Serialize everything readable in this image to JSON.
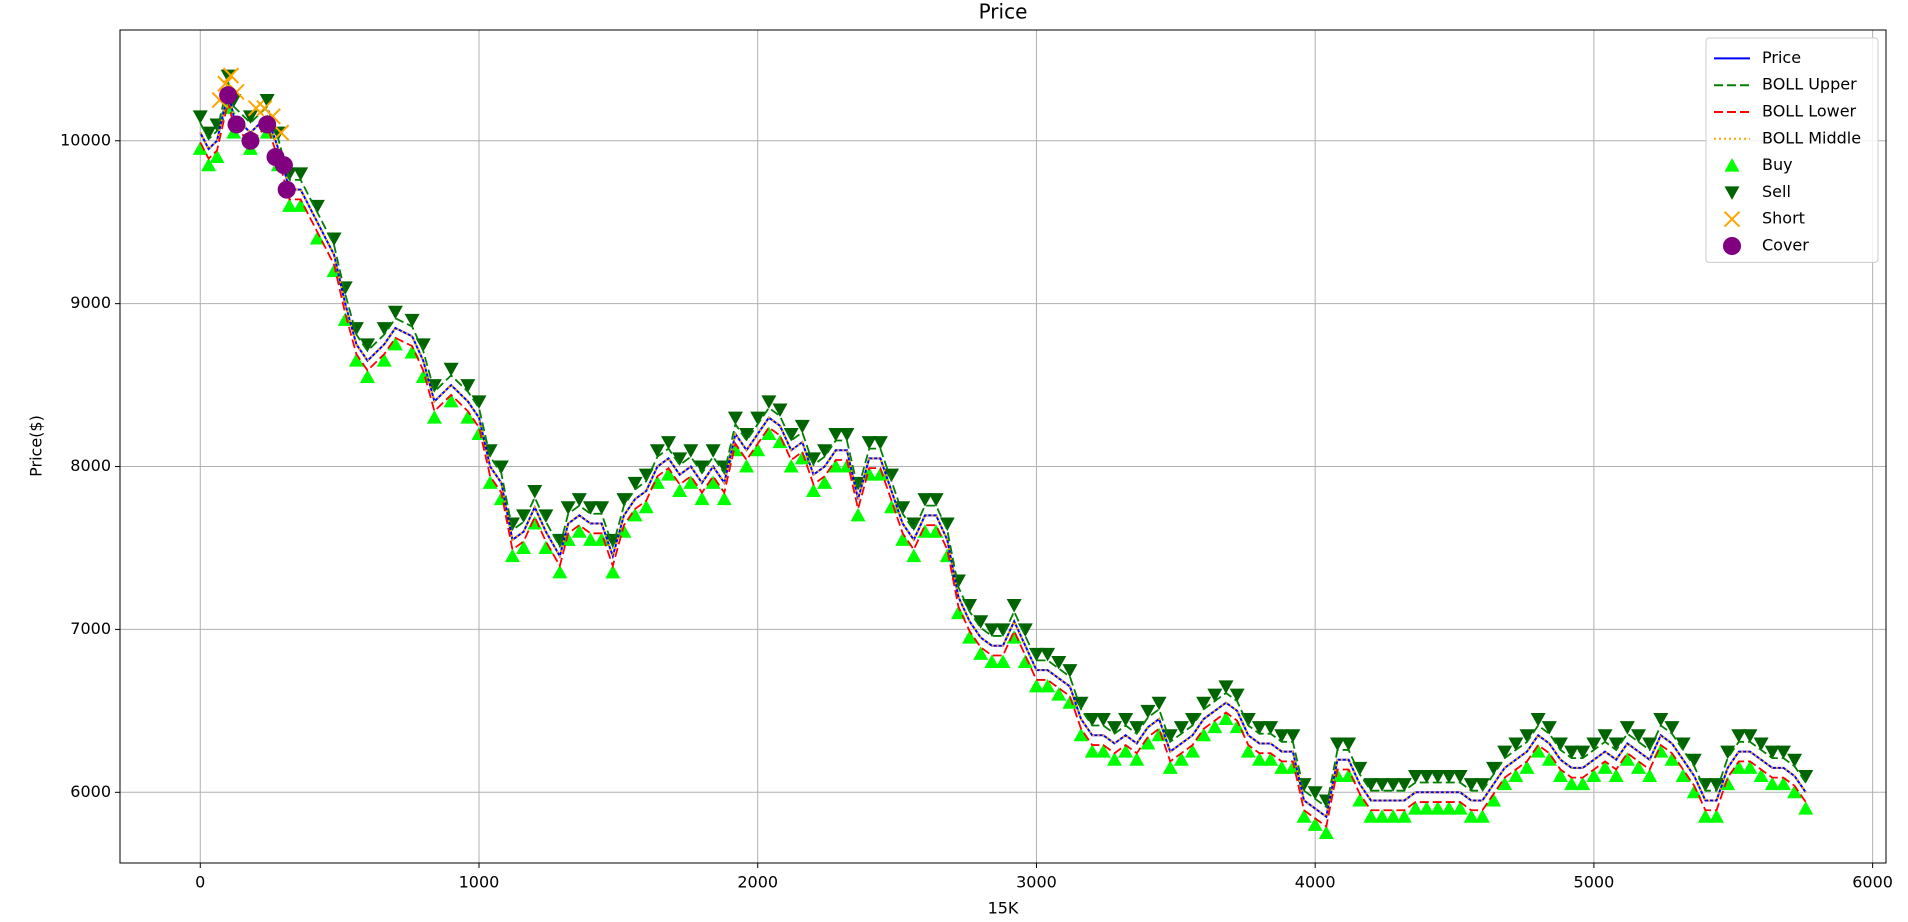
{
  "chart_data": {
    "type": "line",
    "title": "Price",
    "xlabel": "15K",
    "ylabel": "Price($)",
    "xlim": [
      -288,
      6048
    ],
    "ylim": [
      5566,
      10680
    ],
    "xticks": [
      0,
      1000,
      2000,
      3000,
      4000,
      5000,
      6000
    ],
    "yticks": [
      6000,
      7000,
      8000,
      9000,
      10000
    ],
    "grid": true,
    "legend": "upper right",
    "x": [
      0,
      30,
      60,
      100,
      120,
      180,
      240,
      280,
      320,
      360,
      420,
      480,
      520,
      560,
      600,
      660,
      700,
      760,
      800,
      840,
      900,
      960,
      1000,
      1040,
      1080,
      1120,
      1160,
      1200,
      1240,
      1290,
      1320,
      1360,
      1400,
      1440,
      1480,
      1520,
      1560,
      1600,
      1640,
      1680,
      1720,
      1760,
      1800,
      1840,
      1880,
      1920,
      1960,
      2000,
      2040,
      2080,
      2120,
      2160,
      2200,
      2240,
      2280,
      2320,
      2360,
      2400,
      2440,
      2480,
      2520,
      2560,
      2600,
      2640,
      2680,
      2720,
      2760,
      2800,
      2840,
      2880,
      2920,
      2960,
      3000,
      3040,
      3080,
      3120,
      3160,
      3200,
      3240,
      3280,
      3320,
      3360,
      3400,
      3440,
      3480,
      3520,
      3560,
      3600,
      3640,
      3680,
      3720,
      3760,
      3800,
      3840,
      3880,
      3920,
      3960,
      4000,
      4040,
      4080,
      4120,
      4160,
      4200,
      4240,
      4280,
      4320,
      4360,
      4400,
      4440,
      4480,
      4520,
      4560,
      4600,
      4640,
      4680,
      4720,
      4760,
      4800,
      4840,
      4880,
      4920,
      4960,
      5000,
      5040,
      5080,
      5120,
      5160,
      5200,
      5240,
      5280,
      5320,
      5360,
      5400,
      5440,
      5480,
      5520,
      5560,
      5600,
      5640,
      5680,
      5720,
      5760
    ],
    "series": [
      {
        "name": "Price",
        "color": "blue",
        "linestyle": "solid",
        "values": [
          10050,
          9950,
          10000,
          10300,
          10150,
          10050,
          10150,
          9950,
          9700,
          9700,
          9500,
          9300,
          9000,
          8750,
          8650,
          8750,
          8850,
          8800,
          8650,
          8400,
          8500,
          8400,
          8300,
          8000,
          7900,
          7550,
          7600,
          7750,
          7600,
          7450,
          7650,
          7700,
          7650,
          7650,
          7450,
          7700,
          7800,
          7850,
          8000,
          8050,
          7950,
          8000,
          7900,
          8000,
          7900,
          8200,
          8100,
          8200,
          8300,
          8250,
          8100,
          8150,
          7950,
          8000,
          8100,
          8100,
          7800,
          8050,
          8050,
          7850,
          7650,
          7550,
          7700,
          7700,
          7550,
          7200,
          7050,
          6950,
          6900,
          6900,
          7050,
          6900,
          6750,
          6750,
          6700,
          6650,
          6450,
          6350,
          6350,
          6300,
          6350,
          6300,
          6400,
          6450,
          6250,
          6300,
          6350,
          6450,
          6500,
          6550,
          6500,
          6350,
          6300,
          6300,
          6250,
          6250,
          5950,
          5900,
          5850,
          6200,
          6200,
          6050,
          5950,
          5950,
          5950,
          5950,
          6000,
          6000,
          6000,
          6000,
          6000,
          5950,
          5950,
          6050,
          6150,
          6200,
          6250,
          6350,
          6300,
          6200,
          6150,
          6150,
          6200,
          6250,
          6200,
          6300,
          6250,
          6200,
          6350,
          6300,
          6200,
          6100,
          5950,
          5950,
          6150,
          6250,
          6250,
          6200,
          6150,
          6150,
          6100,
          6000
        ]
      },
      {
        "name": "BOLL Upper",
        "color": "green",
        "linestyle": "dashed",
        "values": [
          10110,
          10010,
          10060,
          10360,
          10210,
          10110,
          10210,
          10010,
          9760,
          9760,
          9560,
          9360,
          9060,
          8810,
          8710,
          8810,
          8910,
          8860,
          8710,
          8460,
          8560,
          8460,
          8360,
          8060,
          7960,
          7610,
          7660,
          7810,
          7660,
          7510,
          7710,
          7760,
          7710,
          7710,
          7510,
          7760,
          7860,
          7910,
          8060,
          8110,
          8010,
          8060,
          7960,
          8060,
          7960,
          8260,
          8160,
          8260,
          8360,
          8310,
          8160,
          8210,
          8010,
          8060,
          8160,
          8160,
          7860,
          8110,
          8110,
          7910,
          7710,
          7610,
          7760,
          7760,
          7610,
          7260,
          7110,
          7010,
          6960,
          6960,
          7110,
          6960,
          6810,
          6810,
          6760,
          6710,
          6510,
          6410,
          6410,
          6360,
          6410,
          6360,
          6460,
          6510,
          6310,
          6360,
          6410,
          6510,
          6560,
          6610,
          6560,
          6410,
          6360,
          6360,
          6310,
          6310,
          6010,
          5960,
          5910,
          6260,
          6260,
          6110,
          6010,
          6010,
          6010,
          6010,
          6060,
          6060,
          6060,
          6060,
          6060,
          6010,
          6010,
          6110,
          6210,
          6260,
          6310,
          6410,
          6360,
          6260,
          6210,
          6210,
          6260,
          6310,
          6260,
          6360,
          6310,
          6260,
          6410,
          6360,
          6260,
          6160,
          6010,
          6010,
          6210,
          6310,
          6310,
          6260,
          6210,
          6210,
          6160,
          6060
        ]
      },
      {
        "name": "BOLL Lower",
        "color": "red",
        "linestyle": "dashed",
        "values": [
          9990,
          9890,
          9940,
          10240,
          10090,
          9990,
          10090,
          9890,
          9640,
          9640,
          9440,
          9240,
          8940,
          8690,
          8590,
          8690,
          8790,
          8740,
          8590,
          8340,
          8440,
          8340,
          8240,
          7940,
          7840,
          7490,
          7540,
          7690,
          7540,
          7390,
          7590,
          7640,
          7590,
          7590,
          7390,
          7640,
          7740,
          7790,
          7940,
          7990,
          7890,
          7940,
          7840,
          7940,
          7840,
          8140,
          8040,
          8140,
          8240,
          8190,
          8040,
          8090,
          7890,
          7940,
          8040,
          8040,
          7740,
          7990,
          7990,
          7790,
          7590,
          7490,
          7640,
          7640,
          7490,
          7140,
          6990,
          6890,
          6840,
          6840,
          6990,
          6840,
          6690,
          6690,
          6640,
          6590,
          6390,
          6290,
          6290,
          6240,
          6290,
          6240,
          6340,
          6390,
          6190,
          6240,
          6290,
          6390,
          6440,
          6490,
          6440,
          6290,
          6240,
          6240,
          6190,
          6190,
          5890,
          5840,
          5790,
          6140,
          6140,
          5990,
          5890,
          5890,
          5890,
          5890,
          5940,
          5940,
          5940,
          5940,
          5940,
          5890,
          5890,
          5990,
          6090,
          6140,
          6190,
          6290,
          6240,
          6140,
          6090,
          6090,
          6140,
          6190,
          6140,
          6240,
          6190,
          6140,
          6290,
          6240,
          6140,
          6040,
          5890,
          5890,
          6090,
          6190,
          6190,
          6140,
          6090,
          6090,
          6040,
          5940
        ]
      },
      {
        "name": "BOLL Middle",
        "color": "orange",
        "linestyle": "dotted",
        "values": [
          10050,
          9950,
          10000,
          10300,
          10150,
          10050,
          10150,
          9950,
          9700,
          9700,
          9500,
          9300,
          9000,
          8750,
          8650,
          8750,
          8850,
          8800,
          8650,
          8400,
          8500,
          8400,
          8300,
          8000,
          7900,
          7550,
          7600,
          7750,
          7600,
          7450,
          7650,
          7700,
          7650,
          7650,
          7450,
          7700,
          7800,
          7850,
          8000,
          8050,
          7950,
          8000,
          7900,
          8000,
          7900,
          8200,
          8100,
          8200,
          8300,
          8250,
          8100,
          8150,
          7950,
          8000,
          8100,
          8100,
          7800,
          8050,
          8050,
          7850,
          7650,
          7550,
          7700,
          7700,
          7550,
          7200,
          7050,
          6950,
          6900,
          6900,
          7050,
          6900,
          6750,
          6750,
          6700,
          6650,
          6450,
          6350,
          6350,
          6300,
          6350,
          6300,
          6400,
          6450,
          6250,
          6300,
          6350,
          6450,
          6500,
          6550,
          6500,
          6350,
          6300,
          6300,
          6250,
          6250,
          5950,
          5900,
          5850,
          6200,
          6200,
          6050,
          5950,
          5950,
          5950,
          5950,
          6000,
          6000,
          6000,
          6000,
          6000,
          5950,
          5950,
          6050,
          6150,
          6200,
          6250,
          6350,
          6300,
          6200,
          6150,
          6150,
          6200,
          6250,
          6200,
          6300,
          6250,
          6200,
          6350,
          6300,
          6200,
          6100,
          5950,
          5950,
          6150,
          6250,
          6250,
          6200,
          6150,
          6150,
          6100,
          6000
        ]
      }
    ],
    "markers": [
      {
        "name": "Buy",
        "color": "lime",
        "marker": "^",
        "values": [
          9950,
          9850,
          9900,
          10200,
          10050,
          9950,
          10050,
          9850,
          9600,
          9600,
          9400,
          9200,
          8900,
          8650,
          8550,
          8650,
          8750,
          8700,
          8550,
          8300,
          8400,
          8300,
          8200,
          7900,
          7800,
          7450,
          7500,
          7650,
          7500,
          7350,
          7550,
          7600,
          7550,
          7550,
          7350,
          7600,
          7700,
          7750,
          7900,
          7950,
          7850,
          7900,
          7800,
          7900,
          7800,
          8100,
          8000,
          8100,
          8200,
          8150,
          8000,
          8050,
          7850,
          7900,
          8000,
          8000,
          7700,
          7950,
          7950,
          7750,
          7550,
          7450,
          7600,
          7600,
          7450,
          7100,
          6950,
          6850,
          6800,
          6800,
          6950,
          6800,
          6650,
          6650,
          6600,
          6550,
          6350,
          6250,
          6250,
          6200,
          6250,
          6200,
          6300,
          6350,
          6150,
          6200,
          6250,
          6350,
          6400,
          6450,
          6400,
          6250,
          6200,
          6200,
          6150,
          6150,
          5850,
          5800,
          5750,
          6100,
          6100,
          5950,
          5850,
          5850,
          5850,
          5850,
          5900,
          5900,
          5900,
          5900,
          5900,
          5850,
          5850,
          5950,
          6050,
          6100,
          6150,
          6250,
          6200,
          6100,
          6050,
          6050,
          6100,
          6150,
          6100,
          6200,
          6150,
          6100,
          6250,
          6200,
          6100,
          6000,
          5850,
          5850,
          6050,
          6150,
          6150,
          6100,
          6050,
          6050,
          6000,
          5900
        ]
      },
      {
        "name": "Sell",
        "color": "darkgreen",
        "marker": "v",
        "values": [
          10150,
          10050,
          10100,
          10400,
          10250,
          10150,
          10250,
          10050,
          9800,
          9800,
          9600,
          9400,
          9100,
          8850,
          8750,
          8850,
          8950,
          8900,
          8750,
          8500,
          8600,
          8500,
          8400,
          8100,
          8000,
          7650,
          7700,
          7850,
          7700,
          7550,
          7750,
          7800,
          7750,
          7750,
          7550,
          7800,
          7900,
          7950,
          8100,
          8150,
          8050,
          8100,
          8000,
          8100,
          8000,
          8300,
          8200,
          8300,
          8400,
          8350,
          8200,
          8250,
          8050,
          8100,
          8200,
          8200,
          7900,
          8150,
          8150,
          7950,
          7750,
          7650,
          7800,
          7800,
          7650,
          7300,
          7150,
          7050,
          7000,
          7000,
          7150,
          7000,
          6850,
          6850,
          6800,
          6750,
          6550,
          6450,
          6450,
          6400,
          6450,
          6400,
          6500,
          6550,
          6350,
          6400,
          6450,
          6550,
          6600,
          6650,
          6600,
          6450,
          6400,
          6400,
          6350,
          6350,
          6050,
          6000,
          5950,
          6300,
          6300,
          6150,
          6050,
          6050,
          6050,
          6050,
          6100,
          6100,
          6100,
          6100,
          6100,
          6050,
          6050,
          6150,
          6250,
          6300,
          6350,
          6450,
          6400,
          6300,
          6250,
          6250,
          6300,
          6350,
          6300,
          6400,
          6350,
          6300,
          6450,
          6400,
          6300,
          6200,
          6050,
          6050,
          6250,
          6350,
          6350,
          6300,
          6250,
          6250,
          6200,
          6100
        ]
      },
      {
        "name": "Short",
        "color": "orange",
        "marker": "x",
        "x": [
          70,
          90,
          110,
          130,
          200,
          230,
          260,
          290
        ],
        "values": [
          10250,
          10350,
          10400,
          10300,
          10200,
          10200,
          10150,
          10050
        ]
      },
      {
        "name": "Cover",
        "color": "purple",
        "marker": "o",
        "x": [
          100,
          130,
          180,
          240,
          270,
          300,
          310
        ],
        "values": [
          10280,
          10100,
          10000,
          10100,
          9900,
          9850,
          9700
        ]
      }
    ]
  }
}
